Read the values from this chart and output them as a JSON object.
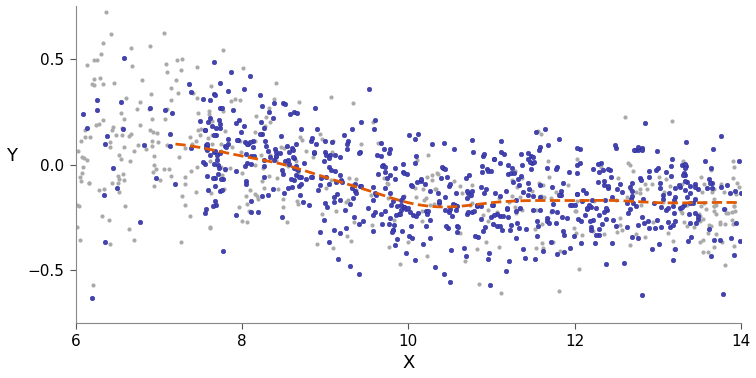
{
  "title": "",
  "xlabel": "X",
  "ylabel": "Y",
  "xlim": [
    6,
    14
  ],
  "ylim": [
    -0.75,
    0.75
  ],
  "xticks": [
    6,
    8,
    10,
    12,
    14
  ],
  "yticks": [
    -0.5,
    0.0,
    0.5
  ],
  "background_color": "#ffffff",
  "gray_color": "#aaaaaa",
  "blue_color": "#4444aa",
  "line_color": "#e05800",
  "seed": 42,
  "n_total": 1100,
  "n_blue": 550,
  "figsize": [
    7.56,
    3.78
  ],
  "dpi": 100,
  "regression_knots_x": [
    7.0,
    7.5,
    8.0,
    8.5,
    9.0,
    9.5,
    10.0,
    10.5,
    11.0,
    11.5,
    12.0,
    12.5,
    13.0,
    13.5,
    14.0
  ],
  "regression_knots_y": [
    0.1,
    0.08,
    0.04,
    0.0,
    -0.06,
    -0.12,
    -0.18,
    -0.2,
    -0.18,
    -0.17,
    -0.17,
    -0.17,
    -0.18,
    -0.18,
    -0.18
  ]
}
